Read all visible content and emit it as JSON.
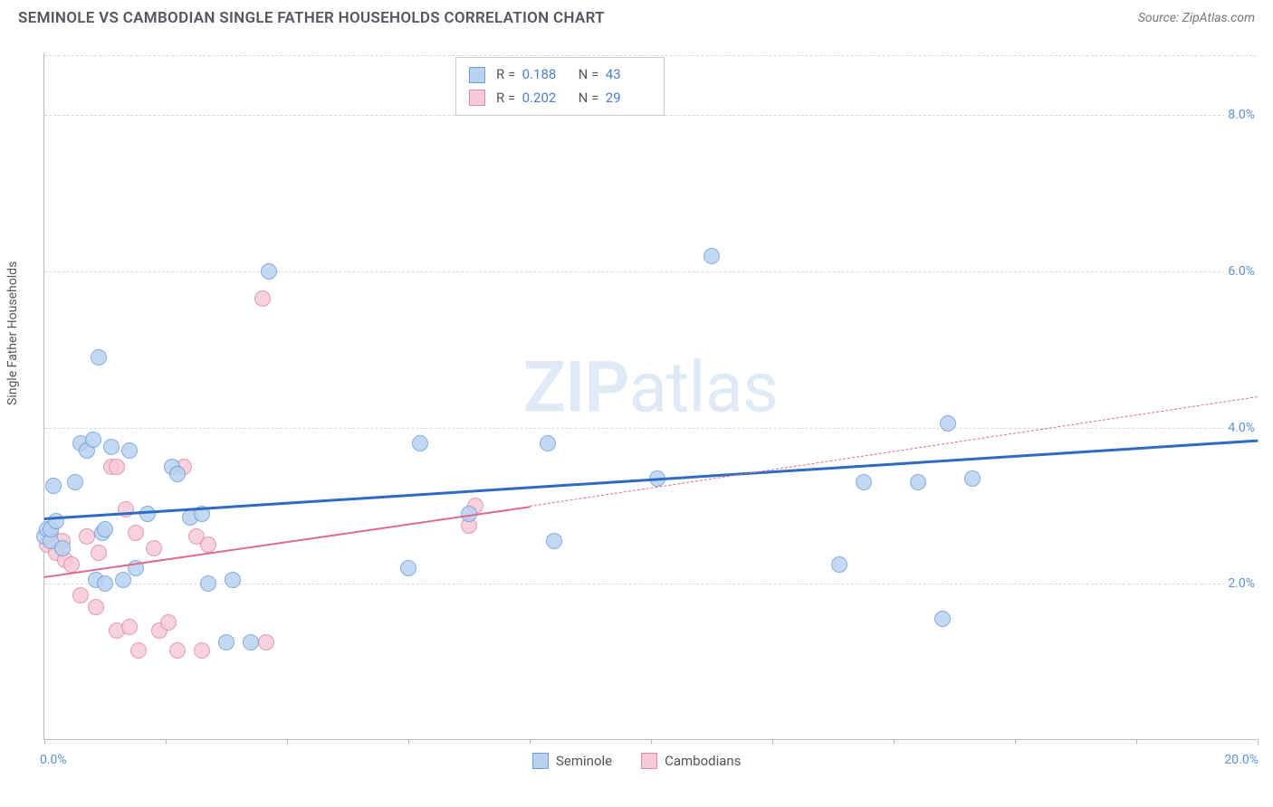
{
  "title": "SEMINOLE VS CAMBODIAN SINGLE FATHER HOUSEHOLDS CORRELATION CHART",
  "source_label": "Source: ZipAtlas.com",
  "y_axis_title": "Single Father Households",
  "watermark_a": "ZIP",
  "watermark_b": "atlas",
  "chart": {
    "type": "scatter",
    "xlim": [
      0,
      20
    ],
    "ylim": [
      0,
      8.8
    ],
    "x_tick_positions": [
      0,
      2,
      4,
      6,
      8,
      10,
      12,
      14,
      16,
      18,
      20
    ],
    "y_gridlines": [
      2,
      4,
      6,
      8
    ],
    "y_tick_labels": [
      "2.0%",
      "4.0%",
      "6.0%",
      "8.0%"
    ],
    "x_min_label": "0.0%",
    "x_max_label": "20.0%",
    "background_color": "#ffffff",
    "grid_color": "#d8d8d8",
    "point_radius": 9,
    "series": [
      {
        "name": "Seminole",
        "fill": "#b9d2f0",
        "stroke": "#6f9fd8",
        "trend_color": "#2d6bc4",
        "trend_width": 3,
        "trend": {
          "x1": 0,
          "y1": 2.85,
          "x2": 20,
          "y2": 3.85
        },
        "r_value": "0.188",
        "n_value": "43",
        "points": [
          [
            0.0,
            2.6
          ],
          [
            0.05,
            2.7
          ],
          [
            0.1,
            2.55
          ],
          [
            0.1,
            2.7
          ],
          [
            0.15,
            3.25
          ],
          [
            0.2,
            2.8
          ],
          [
            0.3,
            2.45
          ],
          [
            0.5,
            3.3
          ],
          [
            0.6,
            3.8
          ],
          [
            0.7,
            3.7
          ],
          [
            0.8,
            3.85
          ],
          [
            0.85,
            2.05
          ],
          [
            0.9,
            4.9
          ],
          [
            0.95,
            2.65
          ],
          [
            1.0,
            2.7
          ],
          [
            1.0,
            2.0
          ],
          [
            1.1,
            3.75
          ],
          [
            1.3,
            2.05
          ],
          [
            1.4,
            3.7
          ],
          [
            1.5,
            2.2
          ],
          [
            1.7,
            2.9
          ],
          [
            2.1,
            3.5
          ],
          [
            2.2,
            3.4
          ],
          [
            2.4,
            2.85
          ],
          [
            2.6,
            2.9
          ],
          [
            2.7,
            2.0
          ],
          [
            3.0,
            1.25
          ],
          [
            3.1,
            2.05
          ],
          [
            3.4,
            1.25
          ],
          [
            3.7,
            6.0
          ],
          [
            6.0,
            2.2
          ],
          [
            6.2,
            3.8
          ],
          [
            7.0,
            2.9
          ],
          [
            8.3,
            3.8
          ],
          [
            8.4,
            2.55
          ],
          [
            10.1,
            3.35
          ],
          [
            11.0,
            6.2
          ],
          [
            13.1,
            2.25
          ],
          [
            13.5,
            3.3
          ],
          [
            14.4,
            3.3
          ],
          [
            14.8,
            1.55
          ],
          [
            14.9,
            4.05
          ],
          [
            15.3,
            3.35
          ]
        ]
      },
      {
        "name": "Cambodians",
        "fill": "#f6c9d6",
        "stroke": "#e28aa5",
        "trend_color": "#e06a8d",
        "trend_width": 2,
        "trend": {
          "x1": 0,
          "y1": 2.1,
          "x2": 8.0,
          "y2": 3.0
        },
        "trend_ext": {
          "x1": 8.0,
          "y1": 3.0,
          "x2": 20,
          "y2": 4.4
        },
        "r_value": "0.202",
        "n_value": "29",
        "points": [
          [
            0.05,
            2.5
          ],
          [
            0.1,
            2.65
          ],
          [
            0.2,
            2.4
          ],
          [
            0.3,
            2.55
          ],
          [
            0.35,
            2.3
          ],
          [
            0.45,
            2.25
          ],
          [
            0.6,
            1.85
          ],
          [
            0.7,
            2.6
          ],
          [
            0.85,
            1.7
          ],
          [
            0.9,
            2.4
          ],
          [
            1.1,
            3.5
          ],
          [
            1.2,
            3.5
          ],
          [
            1.2,
            1.4
          ],
          [
            1.35,
            2.95
          ],
          [
            1.4,
            1.45
          ],
          [
            1.5,
            2.65
          ],
          [
            1.55,
            1.15
          ],
          [
            1.8,
            2.45
          ],
          [
            1.9,
            1.4
          ],
          [
            2.05,
            1.5
          ],
          [
            2.2,
            1.15
          ],
          [
            2.3,
            3.5
          ],
          [
            2.5,
            2.6
          ],
          [
            2.6,
            1.15
          ],
          [
            2.7,
            2.5
          ],
          [
            3.6,
            5.65
          ],
          [
            3.65,
            1.25
          ],
          [
            7.0,
            2.75
          ],
          [
            7.1,
            3.0
          ]
        ]
      }
    ]
  },
  "legend_stats": {
    "r_label": "R =",
    "n_label": "N ="
  },
  "legend_bottom": {
    "seminole": "Seminole",
    "cambodians": "Cambodians"
  }
}
